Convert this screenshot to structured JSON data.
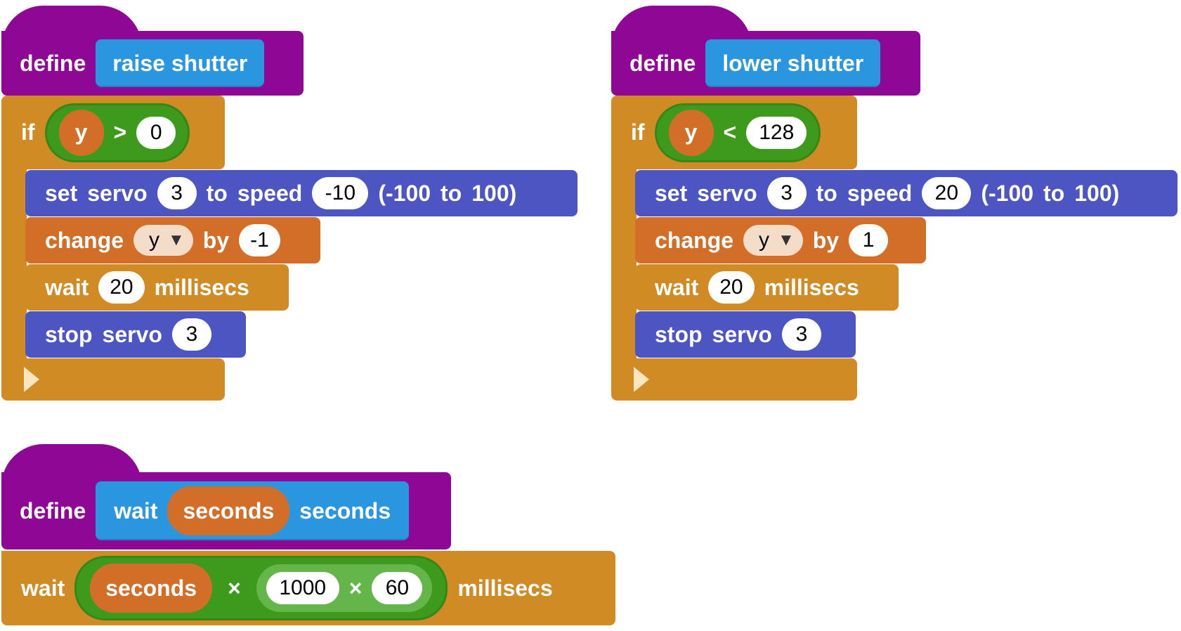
{
  "procedures": [
    {
      "define_label": "define",
      "proto_text": "raise shutter",
      "if_label": "if",
      "cond": {
        "var": "y",
        "op": ">",
        "value": "0"
      },
      "servo": {
        "w1": "set",
        "w2": "servo",
        "servo_num": "3",
        "w3": "to",
        "w4": "speed",
        "speed": "-10",
        "w5": "(-100",
        "w6": "to",
        "w7": "100)"
      },
      "change": {
        "w1": "change",
        "var": "y",
        "w2": "by",
        "amount": "-1"
      },
      "wait": {
        "w1": "wait",
        "ms": "20",
        "w2": "millisecs"
      },
      "stop": {
        "w1": "stop",
        "w2": "servo",
        "servo_num": "3"
      }
    },
    {
      "define_label": "define",
      "proto_text": "lower shutter",
      "if_label": "if",
      "cond": {
        "var": "y",
        "op": "<",
        "value": "128"
      },
      "servo": {
        "w1": "set",
        "w2": "servo",
        "servo_num": "3",
        "w3": "to",
        "w4": "speed",
        "speed": "20",
        "w5": "(-100",
        "w6": "to",
        "w7": "100)"
      },
      "change": {
        "w1": "change",
        "var": "y",
        "w2": "by",
        "amount": "1"
      },
      "wait": {
        "w1": "wait",
        "ms": "20",
        "w2": "millisecs"
      },
      "stop": {
        "w1": "stop",
        "w2": "servo",
        "servo_num": "3"
      }
    }
  ],
  "wait_proc": {
    "define_label": "define",
    "proto_w1": "wait",
    "proto_arg": "seconds",
    "proto_w2": "seconds",
    "body_w1": "wait",
    "expr_var": "seconds",
    "op1": "×",
    "num1": "1000",
    "op2": "×",
    "num2": "60",
    "body_w2": "millisecs"
  },
  "colors": {
    "define": "#8f0795",
    "proto": "#2a96e0",
    "control": "#d18b25",
    "servo": "#4c55c2",
    "variable": "#d36e29",
    "operator": "#3d9a1c"
  }
}
